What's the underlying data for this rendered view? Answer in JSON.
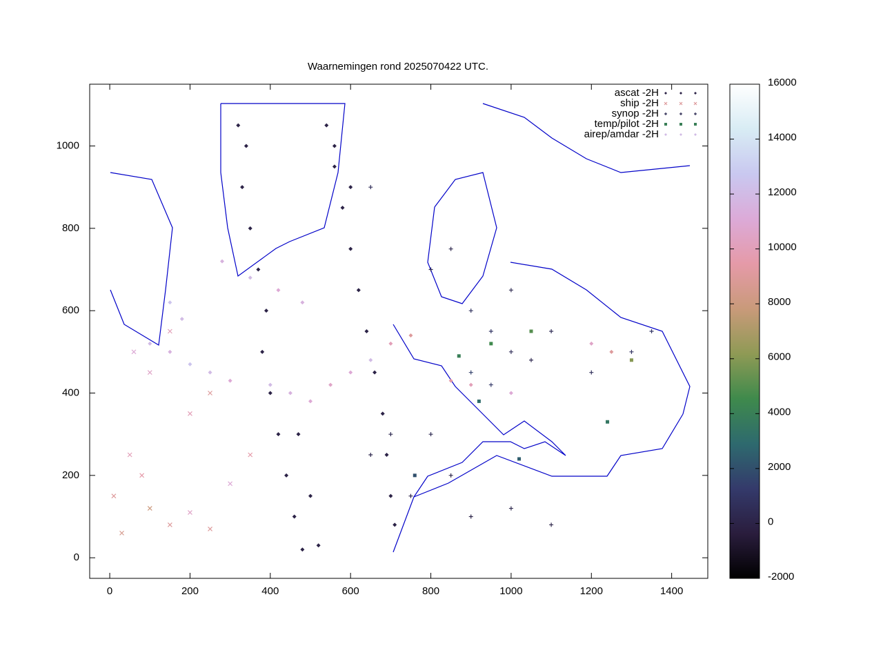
{
  "chart_data": {
    "type": "scatter",
    "title": "Waarnemingen rond 2025070422 UTC.",
    "xlim": [
      -50,
      1490
    ],
    "ylim": [
      -50,
      1150
    ],
    "xticks": [
      0,
      200,
      400,
      600,
      800,
      1000,
      1200,
      1400
    ],
    "yticks": [
      0,
      200,
      400,
      600,
      800,
      1000
    ],
    "zlim": [
      -2000,
      16000
    ],
    "zticks": [
      -2000,
      0,
      2000,
      4000,
      6000,
      8000,
      10000,
      12000,
      14000,
      16000
    ],
    "colormap": [
      "#000000",
      "#2a1d3d",
      "#343a6b",
      "#2e6a6e",
      "#3f8a4c",
      "#8f9a55",
      "#c99a7a",
      "#e59aa8",
      "#dcaad8",
      "#c9c8f0",
      "#d8ecf4",
      "#ffffff"
    ],
    "legend": "top-right",
    "series": [
      {
        "name": "ascat -2H",
        "marker": "dot",
        "x": [
          320,
          340,
          330,
          350,
          370,
          390,
          380,
          400,
          420,
          440,
          460,
          480,
          520,
          500,
          470,
          540,
          560,
          580,
          600,
          620,
          640,
          660,
          680,
          690,
          700,
          710,
          560,
          600
        ],
        "y": [
          1050,
          1000,
          900,
          800,
          700,
          600,
          500,
          400,
          300,
          200,
          100,
          20,
          30,
          150,
          300,
          1050,
          950,
          850,
          750,
          650,
          550,
          450,
          350,
          250,
          150,
          80,
          1000,
          900
        ],
        "z": [
          0,
          0,
          0,
          0,
          0,
          0,
          0,
          0,
          0,
          0,
          0,
          0,
          0,
          0,
          0,
          0,
          0,
          0,
          0,
          0,
          0,
          0,
          0,
          0,
          0,
          0,
          0,
          0
        ]
      },
      {
        "name": "ship -2H",
        "marker": "cross",
        "x": [
          10,
          30,
          50,
          80,
          100,
          150,
          200,
          250,
          300,
          350,
          200,
          100,
          250,
          60,
          150
        ],
        "y": [
          150,
          60,
          250,
          200,
          120,
          80,
          110,
          70,
          180,
          250,
          350,
          450,
          400,
          500,
          550
        ],
        "z": [
          9000,
          8500,
          10000,
          9500,
          8000,
          9000,
          10500,
          9000,
          11000,
          9500,
          10000,
          10500,
          9000,
          11000,
          10000
        ]
      },
      {
        "name": "synop -2H",
        "marker": "plus",
        "x": [
          800,
          850,
          900,
          950,
          1000,
          1050,
          900,
          950,
          800,
          850,
          900,
          1000,
          1100,
          1200,
          1300,
          1350,
          700,
          650,
          750,
          1100,
          1000,
          650
        ],
        "y": [
          700,
          750,
          600,
          550,
          500,
          480,
          450,
          420,
          300,
          200,
          100,
          120,
          80,
          450,
          500,
          550,
          300,
          250,
          150,
          550,
          650,
          900
        ],
        "z": [
          500,
          200,
          800,
          1000,
          600,
          300,
          1500,
          1200,
          400,
          100,
          50,
          200,
          100,
          700,
          900,
          1000,
          300,
          200,
          100,
          500,
          400,
          600
        ]
      },
      {
        "name": "temp/pilot -2H",
        "marker": "square",
        "x": [
          870,
          920,
          1050,
          1300,
          760,
          950,
          1020,
          1240
        ],
        "y": [
          490,
          380,
          550,
          480,
          200,
          520,
          240,
          330
        ],
        "z": [
          4000,
          3000,
          5000,
          6000,
          2000,
          4500,
          2500,
          3500
        ]
      },
      {
        "name": "airep/amdar -2H",
        "marker": "diamond",
        "x": [
          100,
          150,
          200,
          250,
          300,
          400,
          450,
          500,
          550,
          600,
          650,
          700,
          750,
          280,
          350,
          420,
          480,
          150,
          180,
          850,
          900,
          1000,
          1200,
          1250
        ],
        "y": [
          520,
          500,
          470,
          450,
          430,
          420,
          400,
          380,
          420,
          450,
          480,
          520,
          540,
          720,
          680,
          650,
          620,
          620,
          580,
          430,
          420,
          400,
          520,
          500
        ],
        "z": [
          12000,
          11500,
          12500,
          12000,
          11000,
          12000,
          11500,
          11000,
          10500,
          11000,
          12000,
          10000,
          9000,
          11500,
          12000,
          11000,
          11500,
          12500,
          12000,
          9500,
          10000,
          11000,
          10500,
          9000
        ]
      }
    ]
  }
}
